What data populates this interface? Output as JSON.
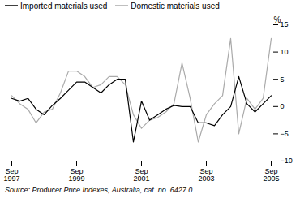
{
  "chart_data": {
    "type": "line",
    "ylabel": "%",
    "source": "Source: Producer Price Indexes, Australia, cat. no. 6427.0.",
    "categories": [
      "Sep\n1997",
      null,
      null,
      null,
      null,
      null,
      null,
      null,
      "Sep\n1999",
      null,
      null,
      null,
      null,
      null,
      null,
      null,
      "Sep\n2001",
      null,
      null,
      null,
      null,
      null,
      null,
      null,
      "Sep\n2003",
      null,
      null,
      null,
      null,
      null,
      null,
      null,
      "Sep\n2005"
    ],
    "series": [
      {
        "name": "Imported materials used",
        "color": "#000000",
        "values": [
          1.5,
          1.0,
          1.5,
          -0.5,
          -1.5,
          0.2,
          1.5,
          3.0,
          4.5,
          4.5,
          3.5,
          2.5,
          4.0,
          5.0,
          5.0,
          -6.5,
          1.0,
          -2.5,
          -1.5,
          -0.5,
          0.2,
          0.0,
          0.0,
          -3.0,
          -3.0,
          -3.5,
          -1.5,
          0.0,
          5.5,
          0.5,
          -1.0,
          0.5,
          2.0
        ]
      },
      {
        "name": "Domestic materials used",
        "color": "#aaaaaa",
        "values": [
          2.0,
          0.5,
          -0.5,
          -3.0,
          -1.0,
          -0.5,
          2.5,
          6.5,
          6.5,
          5.5,
          3.5,
          4.0,
          5.5,
          5.5,
          4.0,
          -1.5,
          -4.0,
          -2.5,
          -2.0,
          -1.0,
          0.5,
          8.0,
          1.5,
          -6.5,
          -1.5,
          0.5,
          2.0,
          12.5,
          -5.0,
          1.5,
          -0.5,
          1.5,
          12.5
        ]
      }
    ],
    "ylim": [
      -10,
      15
    ],
    "yticks": [
      -10,
      -5,
      0,
      5,
      10,
      15
    ],
    "legend": "upper left"
  }
}
